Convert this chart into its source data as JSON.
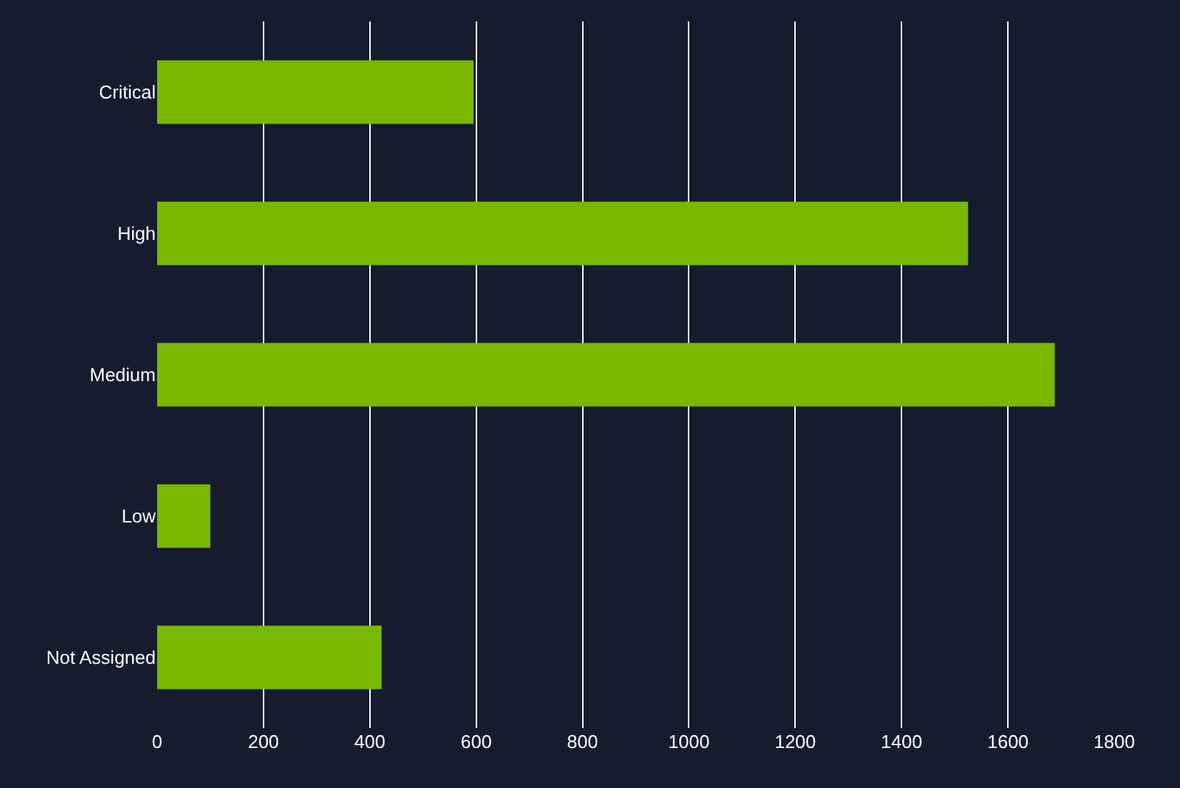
{
  "chart_data": {
    "type": "bar",
    "orientation": "horizontal",
    "categories": [
      "Critical",
      "High",
      "Medium",
      "Low",
      "Not Assigned"
    ],
    "values": [
      595,
      1525,
      1688,
      100,
      422
    ],
    "color": "#78b800",
    "xlim": [
      0,
      1800
    ],
    "xticks": [
      0,
      200,
      400,
      600,
      800,
      1000,
      1200,
      1400,
      1600,
      1800
    ],
    "grid": "x"
  }
}
